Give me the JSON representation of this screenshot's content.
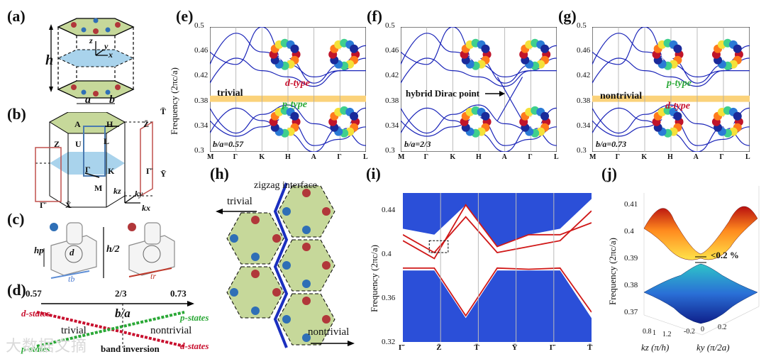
{
  "figure": {
    "labels": {
      "a": "(a)",
      "b": "(b)",
      "c": "(c)",
      "d": "(d)",
      "e": "(e)",
      "f": "(f)",
      "g": "(g)",
      "h": "(h)",
      "i": "(i)",
      "j": "(j)"
    },
    "watermark": "大数据文摘"
  },
  "panel_a": {
    "h": "h",
    "a": "a",
    "b": "b",
    "z": "z",
    "x": "x",
    "y": "y"
  },
  "panel_b": {
    "A": "A",
    "H": "H",
    "L": "L",
    "Gamma": "Γ",
    "K": "K",
    "M": "M",
    "Z": "Z",
    "U": "U",
    "Zbar": "Z̄",
    "Tbar": "T̄",
    "Gbar": "Γ̄",
    "Ybar": "Ȳ",
    "Xbar": "X̄",
    "kz": "kz",
    "ky": "ky",
    "kx": "kx"
  },
  "panel_c": {
    "hp": "hp",
    "d": "d",
    "tb": "tb",
    "tr": "tr",
    "h2": "h/2"
  },
  "panel_d": {
    "ticks": [
      "0.57",
      "2/3",
      "0.73"
    ],
    "axis_label": "b/a",
    "d_states_left": "d-states",
    "p_states_right": "p-states",
    "p_states_left": "p-states",
    "d_states_right": "d-states",
    "trivial": "trivial",
    "nontrivial": "nontrivial",
    "inversion": "band inversion"
  },
  "band_panels": {
    "ylabel": "Frequency (2πc/a)",
    "yticks": [
      "0.5",
      "0.46",
      "0.42",
      "0.38",
      "0.34",
      "0.3"
    ],
    "xticks": [
      "M",
      "Γ",
      "K",
      "H",
      "A",
      "Γ",
      "L"
    ],
    "e": {
      "ratio": "b/a=0.57",
      "phase": "trivial",
      "upper": "d-type",
      "lower": "p-type"
    },
    "f": {
      "ratio": "b/a=2/3",
      "annotation": "hybrid Dirac point"
    },
    "g": {
      "ratio": "b/a=0.73",
      "phase": "nontrivial",
      "upper": "p-type",
      "lower": "d-type"
    }
  },
  "panel_h": {
    "interface": "zigzag interface",
    "left": "trivial",
    "right": "nontrivial"
  },
  "panel_i": {
    "ylabel": "Frequency (2πc/a)",
    "yticks": [
      "0.44",
      "0.4",
      "0.36",
      "0.32"
    ],
    "xticks": [
      "Γ̄",
      "Z̄",
      "T̄",
      "Ȳ",
      "Γ̄",
      "T̄"
    ]
  },
  "panel_j": {
    "ylabel": "Frequency (2πc/a)",
    "yticks": [
      "0.41",
      "0.4",
      "0.39",
      "0.38",
      "0.37"
    ],
    "gap": "<0.2 %",
    "kz_ticks": [
      "0.8",
      "1",
      "1.2"
    ],
    "ky_ticks": [
      "-0.2",
      "0",
      "0.2"
    ],
    "kz_label": "kz (π/h)",
    "ky_label": "ky (π/2a)"
  },
  "colors": {
    "band": "#1a24b8",
    "gap_band": "#fbd27a",
    "edge": "#d01818",
    "bulk": "#2b4fd8",
    "green_hex": "#c7d69a",
    "red_state": "#c8102e",
    "green_state": "#2aa836"
  }
}
